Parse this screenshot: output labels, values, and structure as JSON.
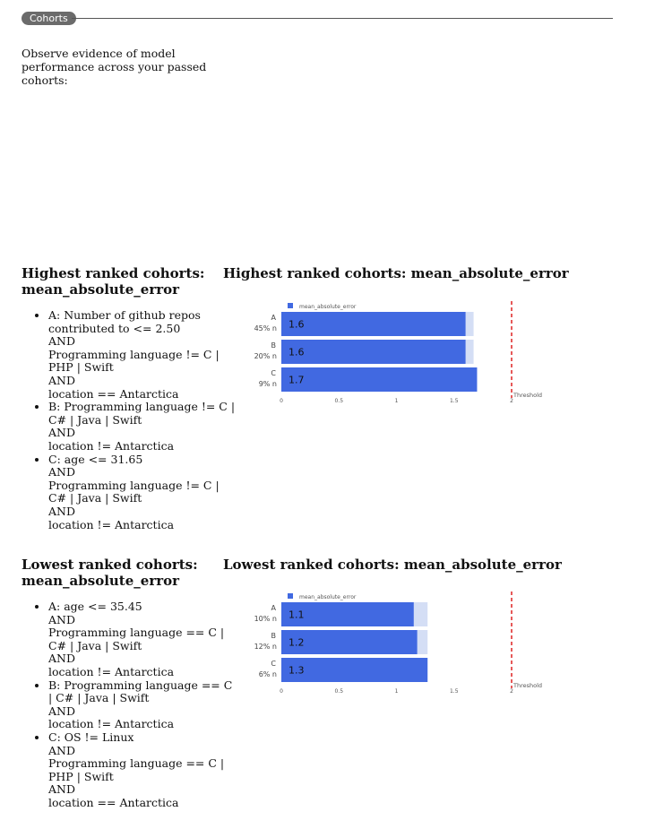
{
  "header": {
    "pill_label": "Cohorts"
  },
  "intro_text": "Observe evidence of model performance across your passed cohorts:",
  "sections": [
    {
      "list_title": "Highest ranked cohorts: mean_absolute_error",
      "chart_title": "Highest ranked cohorts: mean_absolute_error",
      "cohorts": [
        {
          "lines": [
            "A: Number of github repos contributed to <= 2.50",
            "AND",
            "Programming language != C | PHP | Swift",
            "AND",
            "location == Antarctica"
          ]
        },
        {
          "lines": [
            "B: Programming language != C | C# | Java | Swift",
            "AND",
            "location != Antarctica"
          ]
        },
        {
          "lines": [
            "C: age <= 31.65",
            "AND",
            "Programming language != C | C# | Java | Swift",
            "AND",
            "location != Antarctica"
          ]
        }
      ]
    },
    {
      "list_title": "Lowest ranked cohorts: mean_absolute_error",
      "chart_title": "Lowest ranked cohorts: mean_absolute_error",
      "cohorts": [
        {
          "lines": [
            "A: age <= 35.45",
            "AND",
            "Programming language == C | C# | Java | Swift",
            "AND",
            "location != Antarctica"
          ]
        },
        {
          "lines": [
            "B: Programming language == C | C# | Java | Swift",
            "AND",
            "location != Antarctica"
          ]
        },
        {
          "lines": [
            "C: OS != Linux",
            "AND",
            "Programming language == C | PHP | Swift",
            "AND",
            "location == Antarctica"
          ]
        }
      ]
    }
  ],
  "colors": {
    "bar": "#4169e1",
    "bar_background": "#d4def5",
    "threshold": "#dd2222"
  },
  "chart_data": [
    {
      "type": "bar",
      "orientation": "horizontal",
      "title": "Highest ranked cohorts: mean_absolute_error",
      "categories": [
        "A",
        "B",
        "C"
      ],
      "category_sublabels": [
        "45% n",
        "20% n",
        "9% n"
      ],
      "series": [
        {
          "name": "mean_absolute_error",
          "values": [
            1.6,
            1.6,
            1.7
          ],
          "value_labels": [
            "1.6",
            "1.6",
            "1.7"
          ]
        }
      ],
      "background_value": 1.67,
      "xlim": [
        0,
        2
      ],
      "xticks": [
        "0",
        "0.5",
        "1",
        "1.5",
        "2"
      ],
      "threshold": {
        "value": 2,
        "label": "Threshold"
      },
      "legend": "top-left"
    },
    {
      "type": "bar",
      "orientation": "horizontal",
      "title": "Lowest ranked cohorts: mean_absolute_error",
      "categories": [
        "A",
        "B",
        "C"
      ],
      "category_sublabels": [
        "10% n",
        "12% n",
        "6% n"
      ],
      "series": [
        {
          "name": "mean_absolute_error",
          "values": [
            1.15,
            1.18,
            1.27
          ],
          "value_labels": [
            "1.1",
            "1.2",
            "1.3"
          ]
        }
      ],
      "background_value": 1.27,
      "xlim": [
        0,
        2
      ],
      "xticks": [
        "0",
        "0.5",
        "1",
        "1.5",
        "2"
      ],
      "threshold": {
        "value": 2,
        "label": "Threshold"
      },
      "legend": "top-left"
    }
  ]
}
